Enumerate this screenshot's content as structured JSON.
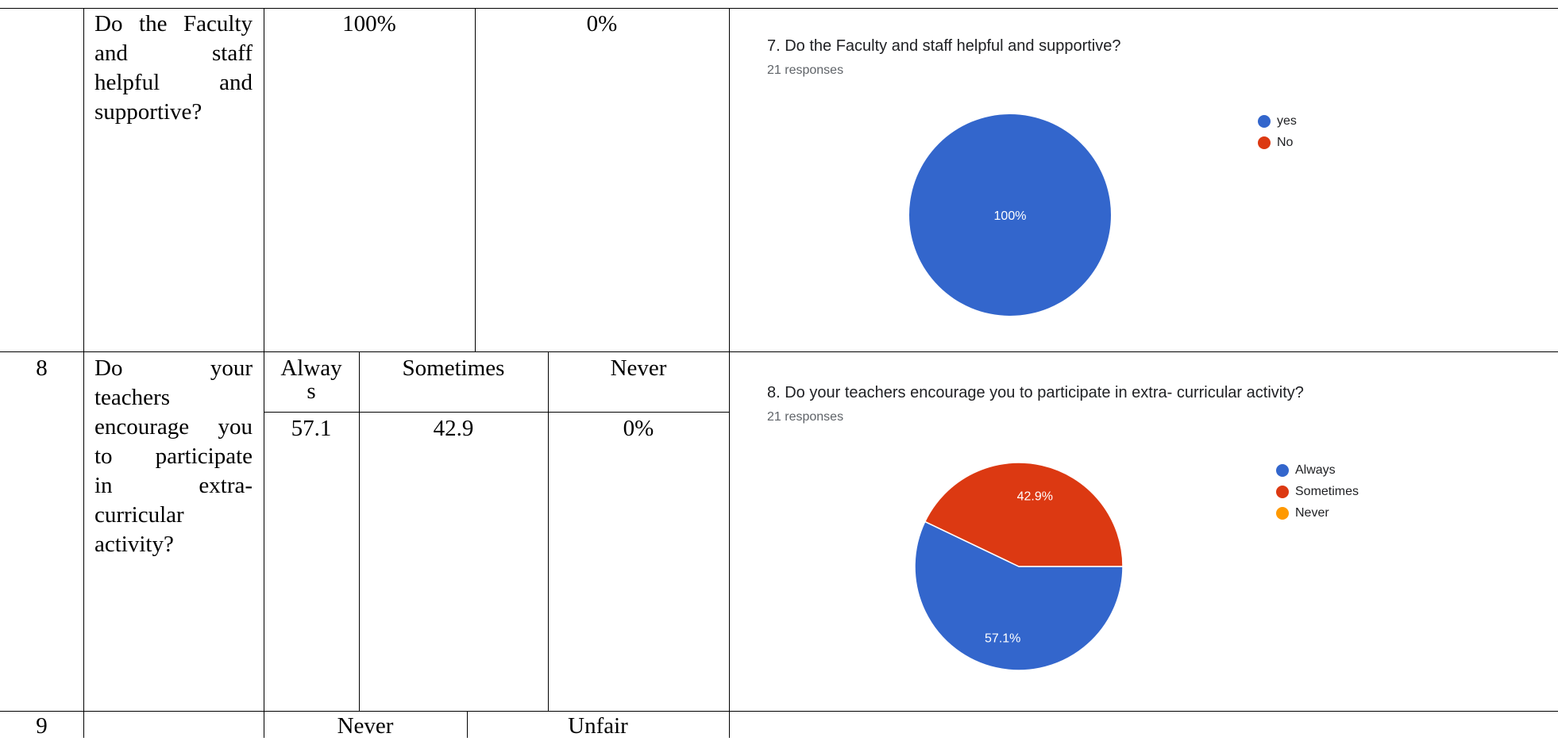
{
  "table": {
    "row7": {
      "question_lines": [
        "Do the Faculty",
        "and staff",
        "helpful and",
        "supportive?"
      ],
      "val_a": "100%",
      "val_b": "0%"
    },
    "row8": {
      "number": "8",
      "question_lines": [
        "Do your",
        "teachers",
        "encourage you",
        "to participate",
        "in extra-",
        "curricular",
        "activity?"
      ],
      "headers": [
        "Alway",
        "s",
        "Sometimes",
        "Never"
      ],
      "values": [
        "57.1",
        "42.9",
        "0%"
      ]
    },
    "row9": {
      "number": "9",
      "headers": [
        "Never",
        "Unfair"
      ]
    }
  },
  "panel7": {
    "title": "7. Do the Faculty and staff helpful and supportive?",
    "responses": "21 responses",
    "legend": [
      {
        "label": "yes",
        "color": "#3366cc"
      },
      {
        "label": "No",
        "color": "#dc3912"
      }
    ]
  },
  "panel8": {
    "title": "8. Do your teachers encourage you to participate in extra- curricular activity?",
    "responses": "21 responses",
    "legend": [
      {
        "label": "Always",
        "color": "#3366cc"
      },
      {
        "label": "Sometimes",
        "color": "#dc3912"
      },
      {
        "label": "Never",
        "color": "#ff9900"
      }
    ]
  },
  "chart_data": [
    {
      "type": "pie",
      "title": "7. Do the Faculty and staff helpful and supportive?",
      "categories": [
        "yes",
        "No"
      ],
      "values": [
        100,
        0
      ],
      "labels": [
        "100%",
        ""
      ],
      "colors": [
        "#3366cc",
        "#dc3912"
      ],
      "legend": "right"
    },
    {
      "type": "pie",
      "title": "8. Do your teachers encourage you to participate in extra- curricular activity?",
      "categories": [
        "Always",
        "Sometimes",
        "Never"
      ],
      "values": [
        57.1,
        42.9,
        0
      ],
      "labels": [
        "57.1%",
        "42.9%",
        ""
      ],
      "colors": [
        "#3366cc",
        "#dc3912",
        "#ff9900"
      ],
      "legend": "right"
    }
  ]
}
